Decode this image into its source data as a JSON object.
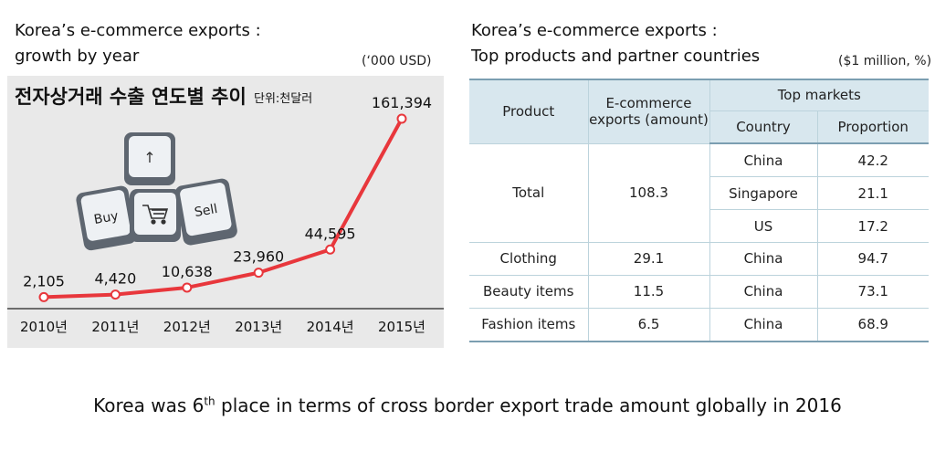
{
  "left": {
    "title_line1": "Korea’s e-commerce exports :",
    "title_line2": "growth by year",
    "unit": "(‘000 USD)"
  },
  "right": {
    "title_line1": "Korea’s e-commerce exports :",
    "title_line2": "Top products and partner countries",
    "unit": "($1 million, %)"
  },
  "chart_data": {
    "type": "line",
    "title": "전자상거래 수출 연도별 추이",
    "unit_label": "단위:천달러",
    "categories": [
      "2010년",
      "2011년",
      "2012년",
      "2013년",
      "2014년",
      "2015년"
    ],
    "values": [
      2105,
      4420,
      10638,
      23960,
      44595,
      161394
    ],
    "value_labels": [
      "2,105",
      "4,420",
      "10,638",
      "23,960",
      "44,595",
      "161,394"
    ],
    "line_color": "#e8373c",
    "grid": false,
    "keyboard_keys": [
      "↑",
      "Buy",
      "Sell"
    ]
  },
  "table": {
    "headers": {
      "product": "Product",
      "amount_line1": "E-commerce",
      "amount_line2": "exports (amount)",
      "top_markets": "Top markets",
      "country": "Country",
      "proportion": "Proportion"
    },
    "total": {
      "product": "Total",
      "amount": "108.3",
      "markets": [
        {
          "country": "China",
          "proportion": "42.2"
        },
        {
          "country": "Singapore",
          "proportion": "21.1"
        },
        {
          "country": "US",
          "proportion": "17.2"
        }
      ]
    },
    "rows": [
      {
        "product": "Clothing",
        "amount": "29.1",
        "country": "China",
        "proportion": "94.7"
      },
      {
        "product": "Beauty items",
        "amount": "11.5",
        "country": "China",
        "proportion": "73.1"
      },
      {
        "product": "Fashion items",
        "amount": "6.5",
        "country": "China",
        "proportion": "68.9"
      }
    ]
  },
  "caption": {
    "before": "Korea was 6",
    "sup": "th",
    "after": " place in terms of cross border export trade amount globally in 2016"
  }
}
